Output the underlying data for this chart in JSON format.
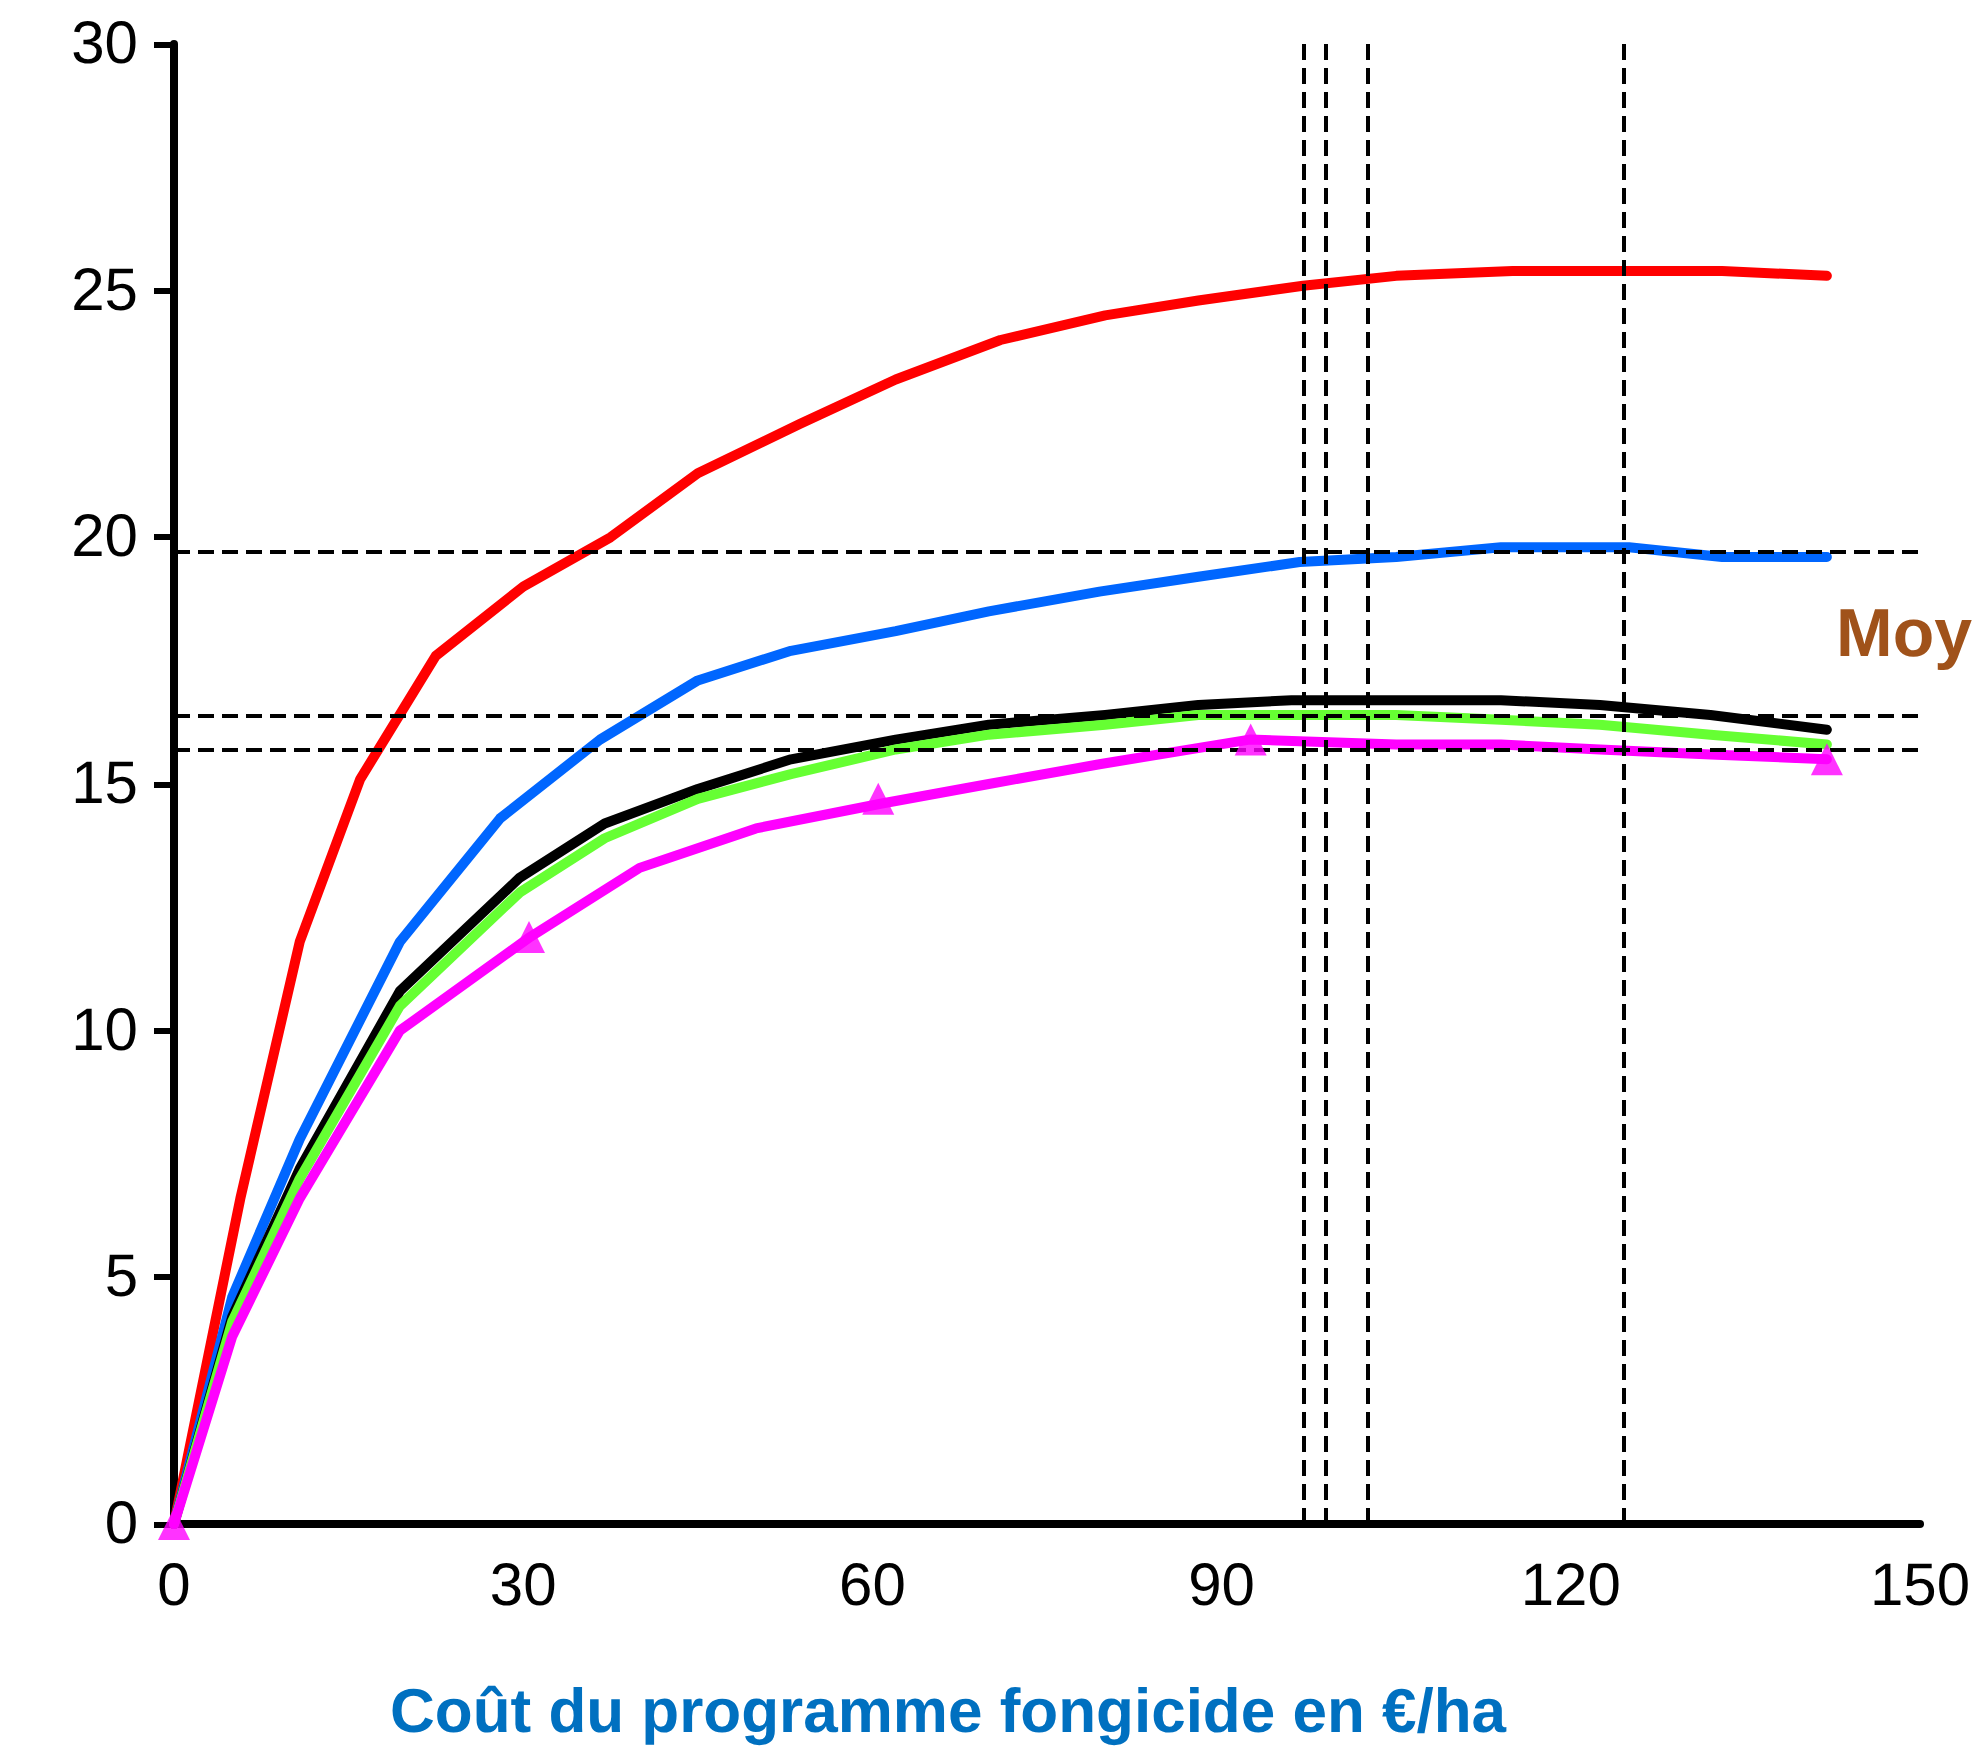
{
  "chart_data": {
    "type": "line",
    "xlabel": "Coût du programme fongicide en €/ha",
    "xlim": [
      0,
      150
    ],
    "xticks": [
      0,
      30,
      60,
      90,
      120,
      150
    ],
    "ylim": [
      0,
      30
    ],
    "yticks": [
      0,
      5,
      10,
      15,
      20,
      25,
      30
    ],
    "grid": false,
    "marker": "none",
    "line_style": "solid",
    "series": [
      {
        "color": "#ff0000",
        "x": [
          0,
          5.7,
          10.8,
          16,
          22.5,
          30,
          37.5,
          45,
          53.8,
          62,
          71,
          80,
          88,
          97,
          105,
          115,
          124,
          133,
          142
        ],
        "values": [
          0,
          6.6,
          11.8,
          15.1,
          17.6,
          19.0,
          20.0,
          21.3,
          22.3,
          23.2,
          24.0,
          24.5,
          24.8,
          25.1,
          25.3,
          25.4,
          25.4,
          25.4,
          25.3
        ]
      },
      {
        "color": "#0066ff",
        "x": [
          0,
          5,
          10.8,
          19.4,
          28,
          36.6,
          45,
          53,
          62,
          70,
          79.5,
          88,
          96.7,
          105,
          114,
          125,
          133,
          142
        ],
        "values": [
          0,
          4.6,
          7.8,
          11.8,
          14.3,
          15.9,
          17.1,
          17.7,
          18.1,
          18.5,
          18.9,
          19.2,
          19.5,
          19.6,
          19.8,
          19.8,
          19.6,
          19.6
        ]
      },
      {
        "color": "#000000",
        "x": [
          0,
          5,
          10.8,
          19.4,
          29.7,
          37,
          45,
          53,
          62,
          70,
          80,
          88,
          96,
          105,
          114,
          122.5,
          132,
          142
        ],
        "values": [
          0,
          4.2,
          7.2,
          10.8,
          13.1,
          14.2,
          14.9,
          15.5,
          15.9,
          16.2,
          16.4,
          16.6,
          16.7,
          16.7,
          16.7,
          16.6,
          16.4,
          16.1
        ]
      },
      {
        "color": "#66ff33",
        "x": [
          0,
          5,
          10.8,
          19.4,
          29.7,
          37,
          45,
          53,
          62,
          70,
          80,
          88,
          96,
          105,
          114,
          122.5,
          132,
          142
        ],
        "values": [
          0,
          4.1,
          7.0,
          10.5,
          12.8,
          13.9,
          14.7,
          15.2,
          15.7,
          16.0,
          16.2,
          16.4,
          16.4,
          16.4,
          16.3,
          16.2,
          16.0,
          15.8
        ]
      },
      {
        "color": "#ff00ff",
        "x": [
          0,
          5,
          10.8,
          19.4,
          30.6,
          40,
          50,
          60.7,
          70,
          79.5,
          92.4,
          105,
          114,
          122.5,
          132,
          142
        ],
        "values": [
          0,
          3.8,
          6.6,
          10.0,
          11.9,
          13.3,
          14.1,
          14.6,
          15.0,
          15.4,
          15.9,
          15.8,
          15.8,
          15.7,
          15.6,
          15.5
        ]
      },
      {
        "type": "scatter",
        "color": "#ff00ff",
        "marker": "triangle",
        "x": [
          0,
          30.5,
          60.5,
          92.5,
          142
        ],
        "values": [
          0,
          11.9,
          14.7,
          15.9,
          15.5
        ]
      }
    ],
    "ref_lines": [
      {
        "axis": "y",
        "value": 19.7,
        "color": "#000000",
        "line_style": "dashed"
      },
      {
        "axis": "y",
        "value": 16.4,
        "color": "#000000",
        "line_style": "dashed"
      },
      {
        "axis": "y",
        "value": 15.7,
        "color": "#000000",
        "line_style": "dashed"
      },
      {
        "axis": "x",
        "value": 97,
        "color": "#000000",
        "line_style": "dashed"
      },
      {
        "axis": "x",
        "value": 99,
        "color": "#000000",
        "line_style": "dashed"
      },
      {
        "axis": "x",
        "value": 102.5,
        "color": "#000000",
        "line_style": "dashed"
      },
      {
        "axis": "x",
        "value": 124.5,
        "color": "#000000",
        "line_style": "dashed"
      }
    ],
    "annotations": [
      "Moy"
    ]
  }
}
